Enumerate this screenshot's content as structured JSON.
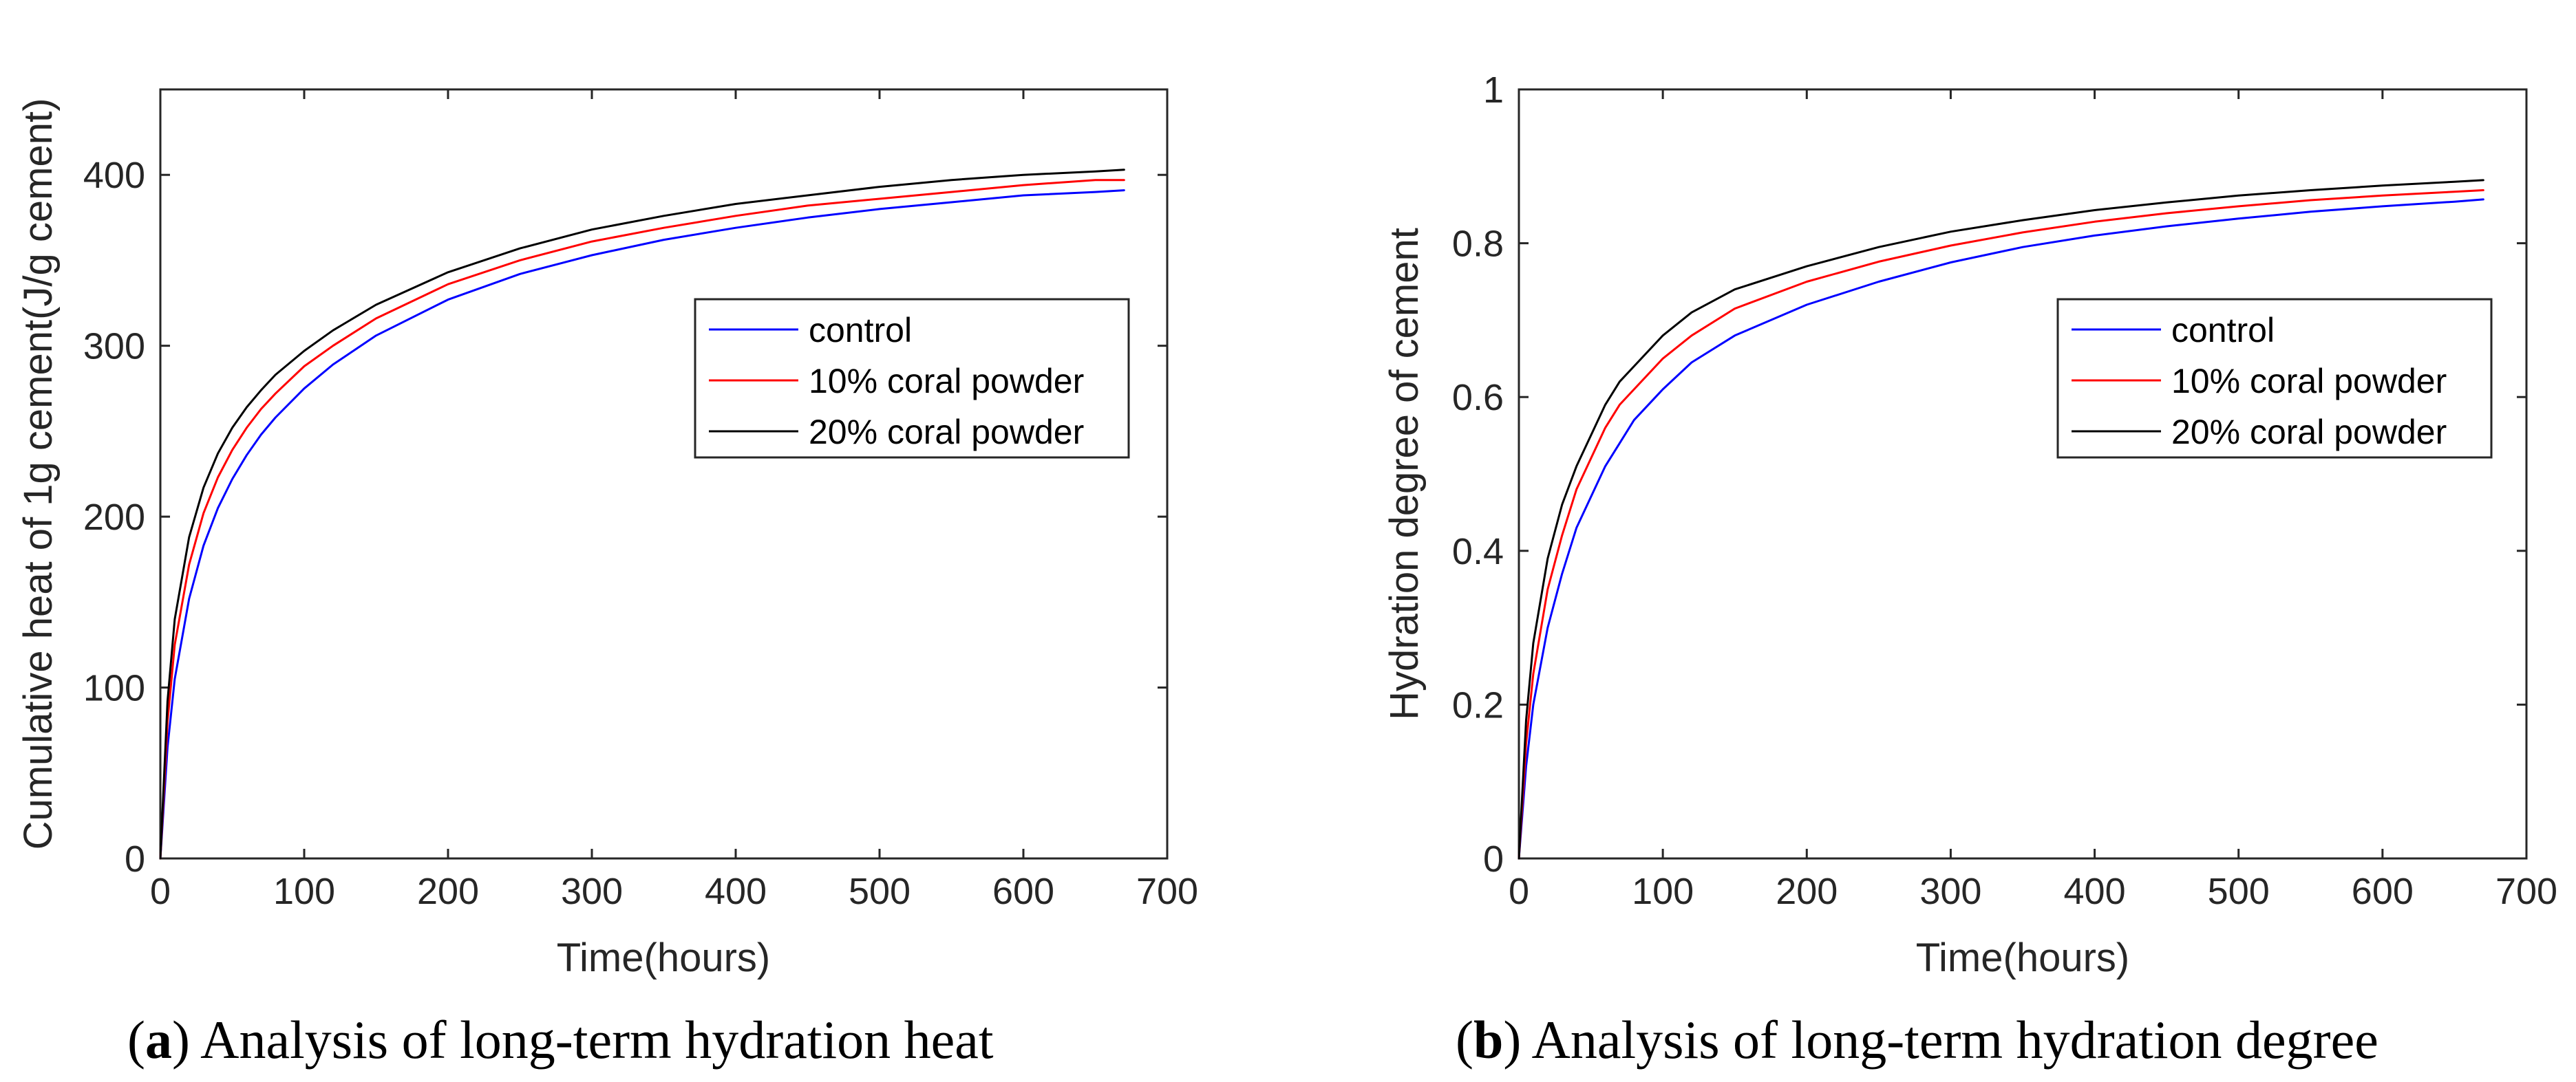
{
  "chart_data": [
    {
      "type": "line",
      "panel_letter": "a",
      "caption": "Analysis of long-term hydration heat",
      "xlabel": "Time(hours)",
      "ylabel": "Cumulative  heat of 1g cement(J/g cement)",
      "xlim": [
        0,
        700
      ],
      "ylim": [
        0,
        450
      ],
      "xticks": [
        0,
        100,
        200,
        300,
        400,
        500,
        600,
        700
      ],
      "yticks": [
        0,
        100,
        200,
        300,
        400
      ],
      "legend_position": "right",
      "series": [
        {
          "name": "control",
          "color": "#0000ff",
          "x": [
            0,
            5,
            10,
            20,
            30,
            40,
            50,
            60,
            70,
            80,
            100,
            120,
            150,
            200,
            250,
            300,
            350,
            400,
            450,
            500,
            550,
            600,
            650,
            670
          ],
          "y": [
            0,
            65,
            105,
            152,
            183,
            205,
            222,
            236,
            248,
            258,
            275,
            289,
            306,
            327,
            342,
            353,
            362,
            369,
            375,
            380,
            384,
            388,
            390,
            391
          ]
        },
        {
          "name": "10% coral powder",
          "color": "#ff0000",
          "x": [
            0,
            5,
            10,
            20,
            30,
            40,
            50,
            60,
            70,
            80,
            100,
            120,
            150,
            200,
            250,
            300,
            350,
            400,
            450,
            500,
            550,
            600,
            650,
            670
          ],
          "y": [
            0,
            80,
            125,
            172,
            202,
            223,
            239,
            252,
            263,
            272,
            288,
            300,
            316,
            336,
            350,
            361,
            369,
            376,
            382,
            386,
            390,
            394,
            397,
            397
          ]
        },
        {
          "name": "20% coral powder",
          "color": "#000000",
          "x": [
            0,
            5,
            10,
            20,
            30,
            40,
            50,
            60,
            70,
            80,
            100,
            120,
            150,
            200,
            250,
            300,
            350,
            400,
            450,
            500,
            550,
            600,
            650,
            670
          ],
          "y": [
            0,
            92,
            140,
            188,
            217,
            237,
            252,
            264,
            274,
            283,
            297,
            309,
            324,
            343,
            357,
            368,
            376,
            383,
            388,
            393,
            397,
            400,
            402,
            403
          ]
        }
      ]
    },
    {
      "type": "line",
      "panel_letter": "b",
      "caption": "Analysis of long-term hydration degree",
      "xlabel": "Time(hours)",
      "ylabel": "Hydration degree of cement",
      "xlim": [
        0,
        700
      ],
      "ylim": [
        0,
        1
      ],
      "xticks": [
        0,
        100,
        200,
        300,
        400,
        500,
        600,
        700
      ],
      "yticks": [
        0,
        0.2,
        0.4,
        0.6,
        0.8,
        1
      ],
      "ytick_labels": [
        "0",
        "0.2",
        "0.4",
        "0.6",
        "0.8",
        "1"
      ],
      "legend_position": "right",
      "series": [
        {
          "name": "control",
          "color": "#0000ff",
          "x": [
            0,
            5,
            10,
            20,
            30,
            40,
            50,
            60,
            70,
            80,
            100,
            120,
            150,
            200,
            250,
            300,
            350,
            400,
            450,
            500,
            550,
            600,
            650,
            670
          ],
          "y": [
            0,
            0.12,
            0.2,
            0.3,
            0.37,
            0.43,
            0.47,
            0.51,
            0.54,
            0.57,
            0.61,
            0.645,
            0.68,
            0.72,
            0.75,
            0.775,
            0.795,
            0.81,
            0.822,
            0.832,
            0.841,
            0.848,
            0.854,
            0.857
          ]
        },
        {
          "name": "10% coral powder",
          "color": "#ff0000",
          "x": [
            0,
            5,
            10,
            20,
            30,
            40,
            50,
            60,
            70,
            80,
            100,
            120,
            150,
            200,
            250,
            300,
            350,
            400,
            450,
            500,
            550,
            600,
            650,
            670
          ],
          "y": [
            0,
            0.15,
            0.24,
            0.35,
            0.42,
            0.48,
            0.52,
            0.56,
            0.59,
            0.61,
            0.65,
            0.68,
            0.715,
            0.75,
            0.776,
            0.797,
            0.814,
            0.828,
            0.839,
            0.848,
            0.856,
            0.862,
            0.867,
            0.869
          ]
        },
        {
          "name": "20% coral powder",
          "color": "#000000",
          "x": [
            0,
            5,
            10,
            20,
            30,
            40,
            50,
            60,
            70,
            80,
            100,
            120,
            150,
            200,
            250,
            300,
            350,
            400,
            450,
            500,
            550,
            600,
            650,
            670
          ],
          "y": [
            0,
            0.18,
            0.28,
            0.39,
            0.46,
            0.51,
            0.55,
            0.59,
            0.62,
            0.64,
            0.68,
            0.71,
            0.74,
            0.77,
            0.795,
            0.815,
            0.83,
            0.843,
            0.853,
            0.862,
            0.869,
            0.875,
            0.88,
            0.882
          ]
        }
      ]
    }
  ]
}
